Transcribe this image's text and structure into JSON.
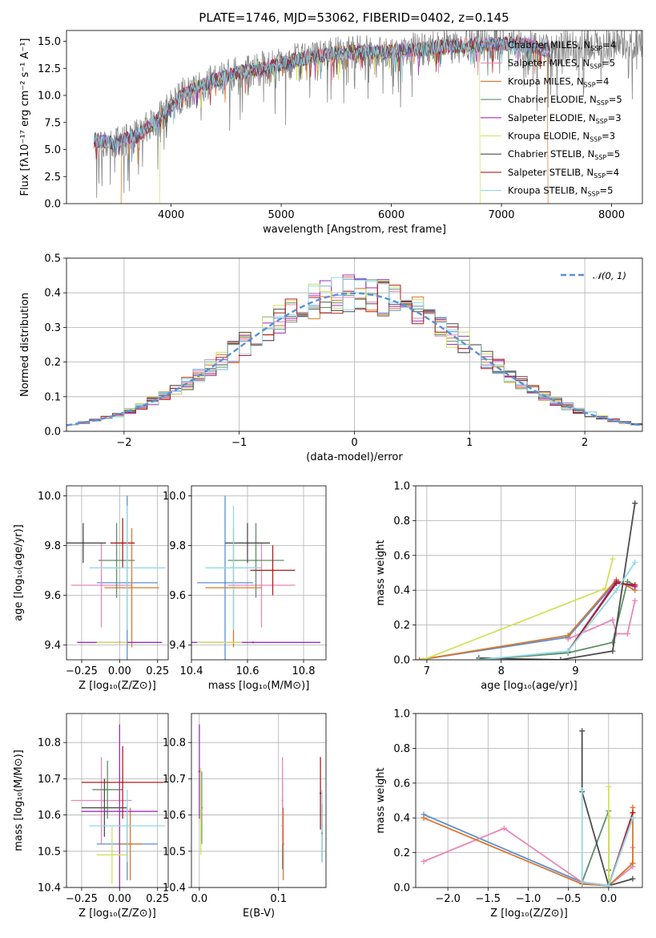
{
  "figure": {
    "title": "PLATE=1746, MJD=53062, FIBERID=0402, z=0.145"
  },
  "colors": {
    "Chabrier MILES": "#5b8fd6",
    "Salpeter MILES": "#e887b8",
    "Kroupa MILES": "#d9782a",
    "Chabrier ELODIE": "#5f8f68",
    "Salpeter ELODIE": "#a02dbb",
    "Kroupa ELODIE": "#d3e05c",
    "Chabrier STELIB": "#4d4d4d",
    "Salpeter STELIB": "#b01e1e",
    "Kroupa STELIB": "#8fd9e6",
    "data": "#808080",
    "normal": "#5b8fd6"
  },
  "chart_data": [
    {
      "id": "spectrum",
      "type": "line",
      "title": "PLATE=1746, MJD=53062, FIBERID=0402, z=0.145",
      "xlabel": "wavelength [Angstrom, rest frame]",
      "ylabel": "Flux [fλ10⁻¹⁷ erg cm⁻² s⁻¹ A⁻¹]",
      "xlim": [
        3050,
        8280
      ],
      "ylim": [
        0,
        16
      ],
      "xticks": [
        "4000",
        "5000",
        "6000",
        "7000",
        "8000"
      ],
      "yticks": [
        "0.0",
        "2.5",
        "5.0",
        "7.5",
        "10.0",
        "12.5",
        "15.0"
      ],
      "legend_position": "top-right",
      "legend": [
        "Chabrier MILES, N_SSP=4",
        "Salpeter MILES, N_SSP=5",
        "Kroupa MILES, N_SSP=4",
        "Chabrier ELODIE, N_SSP=5",
        "Salpeter ELODIE, N_SSP=3",
        "Kroupa ELODIE, N_SSP=3",
        "Chabrier STELIB, N_SSP=5",
        "Salpeter STELIB, N_SSP=4",
        "Kroupa STELIB, N_SSP=5"
      ],
      "continuum_x": [
        3300,
        3500,
        3700,
        3900,
        4100,
        4300,
        4500,
        4700,
        4900,
        5100,
        5300,
        5500,
        5700,
        5900,
        6100,
        6300,
        6500,
        6700,
        6900,
        7100,
        7300,
        7400
      ],
      "continuum_y": [
        5.9,
        5.6,
        6.3,
        8.0,
        10.0,
        11.0,
        11.8,
        12.3,
        12.6,
        13.2,
        13.6,
        13.9,
        14.0,
        14.0,
        14.2,
        14.3,
        14.5,
        14.6,
        14.7,
        14.8,
        14.5,
        14.2
      ],
      "data_xrange": [
        3300,
        8280
      ],
      "model_xrange": [
        3300,
        7450
      ],
      "model_cutoffs": {
        "Kroupa ELODIE": [
          3900,
          6800
        ],
        "Kroupa MILES": [
          3550,
          7420
        ]
      }
    },
    {
      "id": "residuals",
      "type": "line",
      "xlabel": "(data-model)/error",
      "ylabel": "Normed distribution",
      "xlim": [
        -2.5,
        2.5
      ],
      "ylim": [
        0,
        0.5
      ],
      "xticks": [
        "−2",
        "−1",
        "0",
        "1",
        "2"
      ],
      "yticks": [
        "0.0",
        "0.1",
        "0.2",
        "0.3",
        "0.4",
        "0.5"
      ],
      "legend_position": "top-right",
      "legend": [
        "𝒩(0, 1)"
      ],
      "bin_width": 0.1,
      "bin_start": -2.5,
      "series_names": [
        "Chabrier MILES",
        "Salpeter MILES",
        "Kroupa MILES",
        "Chabrier ELODIE",
        "Salpeter ELODIE",
        "Kroupa ELODIE",
        "Chabrier STELIB",
        "Salpeter STELIB",
        "Kroupa STELIB"
      ]
    },
    {
      "id": "age_vs_Z",
      "type": "scatter",
      "xlabel": "Z [log₁₀(Z/Z⊙)]",
      "ylabel": "age  [log₁₀(age/yr)]",
      "xlim": [
        -0.35,
        0.32
      ],
      "ylim": [
        9.34,
        10.04
      ],
      "xticks": [
        "−0.25",
        "0.00",
        "0.25"
      ],
      "yticks": [
        "9.4",
        "9.6",
        "9.8",
        "10.0"
      ],
      "points": [
        {
          "series": "Chabrier MILES",
          "x": 0.05,
          "y": 9.65,
          "xerr": 0.2,
          "yerr": 0.35
        },
        {
          "series": "Salpeter MILES",
          "x": -0.12,
          "y": 9.64,
          "xerr": 0.2,
          "yerr": 0.17
        },
        {
          "series": "Kroupa MILES",
          "x": 0.08,
          "y": 9.63,
          "xerr": 0.18,
          "yerr": 0.24
        },
        {
          "series": "Chabrier ELODIE",
          "x": -0.02,
          "y": 9.74,
          "xerr": 0.12,
          "yerr": 0.15
        },
        {
          "series": "Salpeter ELODIE",
          "x": 0.0,
          "y": 9.41,
          "xerr": 0.28,
          "yerr": 0.0
        },
        {
          "series": "Kroupa ELODIE",
          "x": -0.05,
          "y": 9.41,
          "xerr": 0.1,
          "yerr": 0.0
        },
        {
          "series": "Chabrier STELIB",
          "x": -0.24,
          "y": 9.81,
          "xerr": 0.15,
          "yerr": 0.08
        },
        {
          "series": "Salpeter STELIB",
          "x": 0.02,
          "y": 9.81,
          "xerr": 0.08,
          "yerr": 0.1
        },
        {
          "series": "Kroupa STELIB",
          "x": 0.05,
          "y": 9.71,
          "xerr": 0.25,
          "yerr": 0.25
        }
      ]
    },
    {
      "id": "age_vs_mass",
      "type": "scatter",
      "xlabel": "mass [log₁₀(M/M⊙)]",
      "ylabel": "",
      "xlim": [
        10.4,
        10.88
      ],
      "ylim": [
        9.34,
        10.04
      ],
      "xticks": [
        "10.4",
        "10.6",
        "10.8"
      ],
      "yticks": [
        "9.4",
        "9.6",
        "9.8",
        "10.0"
      ],
      "points": [
        {
          "series": "Chabrier MILES",
          "x": 10.52,
          "y": 9.65,
          "xerr": 0.1,
          "yerr": 0.35
        },
        {
          "series": "Salpeter MILES",
          "x": 10.65,
          "y": 9.64,
          "xerr": 0.12,
          "yerr": 0.17
        },
        {
          "series": "Kroupa MILES",
          "x": 10.55,
          "y": 9.63,
          "xerr": 0.1,
          "yerr": 0.24
        },
        {
          "series": "Chabrier ELODIE",
          "x": 10.63,
          "y": 9.74,
          "xerr": 0.1,
          "yerr": 0.15
        },
        {
          "series": "Salpeter ELODIE",
          "x": 10.62,
          "y": 9.41,
          "xerr": 0.24,
          "yerr": 0.0
        },
        {
          "series": "Kroupa ELODIE",
          "x": 10.5,
          "y": 9.41,
          "xerr": 0.08,
          "yerr": 0.0
        },
        {
          "series": "Chabrier STELIB",
          "x": 10.6,
          "y": 9.81,
          "xerr": 0.08,
          "yerr": 0.08
        },
        {
          "series": "Salpeter STELIB",
          "x": 10.69,
          "y": 9.7,
          "xerr": 0.08,
          "yerr": 0.1
        },
        {
          "series": "Kroupa STELIB",
          "x": 10.55,
          "y": 9.71,
          "xerr": 0.1,
          "yerr": 0.25
        }
      ]
    },
    {
      "id": "mass_weight_vs_age",
      "type": "line",
      "xlabel": "age  [log₁₀(age/yr)]",
      "ylabel": "mass weight",
      "xlim": [
        6.85,
        9.9
      ],
      "ylim": [
        0,
        1
      ],
      "xticks": [
        "7",
        "8",
        "9"
      ],
      "yticks": [
        "0.0",
        "0.2",
        "0.4",
        "0.6",
        "0.8",
        "1.0"
      ],
      "series": [
        {
          "name": "Chabrier MILES",
          "x": [
            6.9,
            8.9,
            9.55,
            9.8
          ],
          "y": [
            0.0,
            0.13,
            0.45,
            0.42
          ]
        },
        {
          "name": "Salpeter MILES",
          "x": [
            8.9,
            9.5,
            9.55,
            9.7,
            9.8
          ],
          "y": [
            0.12,
            0.23,
            0.15,
            0.15,
            0.34
          ]
        },
        {
          "name": "Kroupa MILES",
          "x": [
            6.9,
            8.9,
            9.55,
            9.8
          ],
          "y": [
            0.0,
            0.14,
            0.46,
            0.4
          ]
        },
        {
          "name": "Chabrier ELODIE",
          "x": [
            7.7,
            8.9,
            9.5,
            9.7,
            9.8
          ],
          "y": [
            0.0,
            0.04,
            0.1,
            0.45,
            0.43
          ]
        },
        {
          "name": "Salpeter ELODIE",
          "x": [
            8.9,
            9.55,
            9.8
          ],
          "y": [
            0.05,
            0.45,
            0.42
          ]
        },
        {
          "name": "Kroupa ELODIE",
          "x": [
            6.95,
            9.4,
            9.5
          ],
          "y": [
            0.0,
            0.41,
            0.58
          ]
        },
        {
          "name": "Chabrier STELIB",
          "x": [
            7.7,
            8.8,
            9.5,
            9.8
          ],
          "y": [
            0.01,
            0.0,
            0.05,
            0.9
          ]
        },
        {
          "name": "Salpeter STELIB",
          "x": [
            8.9,
            9.55,
            9.8
          ],
          "y": [
            0.05,
            0.44,
            0.43
          ]
        },
        {
          "name": "Kroupa STELIB",
          "x": [
            7.7,
            8.9,
            9.55,
            9.8
          ],
          "y": [
            0.0,
            0.05,
            0.4,
            0.56
          ]
        }
      ]
    },
    {
      "id": "mass_vs_Z",
      "type": "scatter",
      "xlabel": "Z [log₁₀(Z/Z⊙)]",
      "ylabel": "mass [log₁₀(M/M⊙)]",
      "xlim": [
        -0.35,
        0.32
      ],
      "ylim": [
        10.4,
        10.88
      ],
      "xticks": [
        "−0.25",
        "0.00",
        "0.25"
      ],
      "yticks": [
        "10.4",
        "10.5",
        "10.6",
        "10.7",
        "10.8"
      ],
      "points": [
        {
          "series": "Chabrier MILES",
          "x": 0.05,
          "y": 10.52,
          "xerr": 0.2,
          "yerr": 0.1
        },
        {
          "series": "Salpeter MILES",
          "x": -0.12,
          "y": 10.64,
          "xerr": 0.2,
          "yerr": 0.12
        },
        {
          "series": "Kroupa MILES",
          "x": 0.07,
          "y": 10.52,
          "xerr": 0.08,
          "yerr": 0.1
        },
        {
          "series": "Chabrier ELODIE",
          "x": -0.08,
          "y": 10.67,
          "xerr": 0.1,
          "yerr": 0.08
        },
        {
          "series": "Salpeter ELODIE",
          "x": 0.0,
          "y": 10.61,
          "xerr": 0.25,
          "yerr": 0.24
        },
        {
          "series": "Kroupa ELODIE",
          "x": -0.05,
          "y": 10.49,
          "xerr": 0.1,
          "yerr": 0.08
        },
        {
          "series": "Chabrier STELIB",
          "x": -0.1,
          "y": 10.62,
          "xerr": 0.15,
          "yerr": 0.08
        },
        {
          "series": "Salpeter STELIB",
          "x": 0.02,
          "y": 10.69,
          "xerr": 0.27,
          "yerr": 0.1
        },
        {
          "series": "Kroupa STELIB",
          "x": 0.05,
          "y": 10.57,
          "xerr": 0.25,
          "yerr": 0.1
        }
      ]
    },
    {
      "id": "mass_vs_ebv",
      "type": "scatter",
      "xlabel": "E(B-V)",
      "ylabel": "",
      "xlim": [
        -0.01,
        0.16
      ],
      "ylim": [
        10.4,
        10.88
      ],
      "xticks": [
        "0.0",
        "0.1"
      ],
      "yticks": [
        "10.4",
        "10.5",
        "10.6",
        "10.7",
        "10.8"
      ],
      "points": [
        {
          "series": "Chabrier MILES",
          "x": 0.105,
          "y": 10.57,
          "xerr": 0.0,
          "yerr": 0.12
        },
        {
          "series": "Salpeter MILES",
          "x": 0.105,
          "y": 10.64,
          "xerr": 0.0,
          "yerr": 0.12
        },
        {
          "series": "Kroupa MILES",
          "x": 0.106,
          "y": 10.52,
          "xerr": 0.0,
          "yerr": 0.1
        },
        {
          "series": "Chabrier ELODIE",
          "x": 0.003,
          "y": 10.62,
          "xerr": 0.0,
          "yerr": 0.1
        },
        {
          "series": "Salpeter ELODIE",
          "x": 0.0,
          "y": 10.72,
          "xerr": 0.0,
          "yerr": 0.13
        },
        {
          "series": "Kroupa ELODIE",
          "x": 0.002,
          "y": 10.61,
          "xerr": 0.0,
          "yerr": 0.12
        },
        {
          "series": "Chabrier STELIB",
          "x": 0.155,
          "y": 10.55,
          "xerr": 0.0,
          "yerr": 0.08
        },
        {
          "series": "Salpeter STELIB",
          "x": 0.153,
          "y": 10.66,
          "xerr": 0.0,
          "yerr": 0.1
        },
        {
          "series": "Kroupa STELIB",
          "x": 0.155,
          "y": 10.57,
          "xerr": 0.0,
          "yerr": 0.1
        }
      ]
    },
    {
      "id": "mass_weight_vs_Z",
      "type": "line",
      "xlabel": "Z [log₁₀(Z/Z⊙)]",
      "ylabel": "mass weight",
      "xlim": [
        -2.4,
        0.42
      ],
      "ylim": [
        0,
        1
      ],
      "xticks": [
        "−2.0",
        "−1.5",
        "−1.0",
        "−0.5",
        "0.0"
      ],
      "yticks": [
        "0.0",
        "0.2",
        "0.4",
        "0.6",
        "0.8",
        "1.0"
      ],
      "series": [
        {
          "name": "Chabrier MILES",
          "x": [
            -2.3,
            -0.33,
            0.0,
            0.3
          ],
          "y": [
            0.42,
            0.03,
            0.01,
            0.14
          ]
        },
        {
          "name": "Salpeter MILES",
          "x": [
            -2.3,
            -1.3,
            -0.33,
            0.0,
            0.3,
            0.3
          ],
          "y": [
            0.15,
            0.34,
            0.03,
            0.01,
            0.12,
            0.23
          ]
        },
        {
          "name": "Kroupa MILES",
          "x": [
            -2.3,
            -0.33,
            0.0,
            0.3,
            0.3
          ],
          "y": [
            0.4,
            0.02,
            0.01,
            0.14,
            0.46
          ]
        },
        {
          "name": "Chabrier ELODIE",
          "x": [
            -0.33,
            0.0,
            0.0,
            0.0
          ],
          "y": [
            0.03,
            0.44,
            0.1,
            0.0
          ]
        },
        {
          "name": "Salpeter ELODIE",
          "x": [
            -0.33,
            0.0,
            0.3
          ],
          "y": [
            0.03,
            0.01,
            0.4
          ]
        },
        {
          "name": "Kroupa ELODIE",
          "x": [
            0.0,
            0.0,
            0.0
          ],
          "y": [
            0.0,
            0.41,
            0.58
          ]
        },
        {
          "name": "Chabrier STELIB",
          "x": [
            -0.33,
            -0.33,
            0.0,
            0.3
          ],
          "y": [
            0.9,
            0.55,
            0.01,
            0.05
          ]
        },
        {
          "name": "Salpeter STELIB",
          "x": [
            -0.33,
            0.0,
            0.3
          ],
          "y": [
            0.03,
            0.01,
            0.43
          ]
        },
        {
          "name": "Kroupa STELIB",
          "x": [
            -0.33,
            -0.33,
            0.0,
            0.3
          ],
          "y": [
            0.56,
            0.03,
            0.01,
            0.4
          ]
        }
      ]
    }
  ]
}
